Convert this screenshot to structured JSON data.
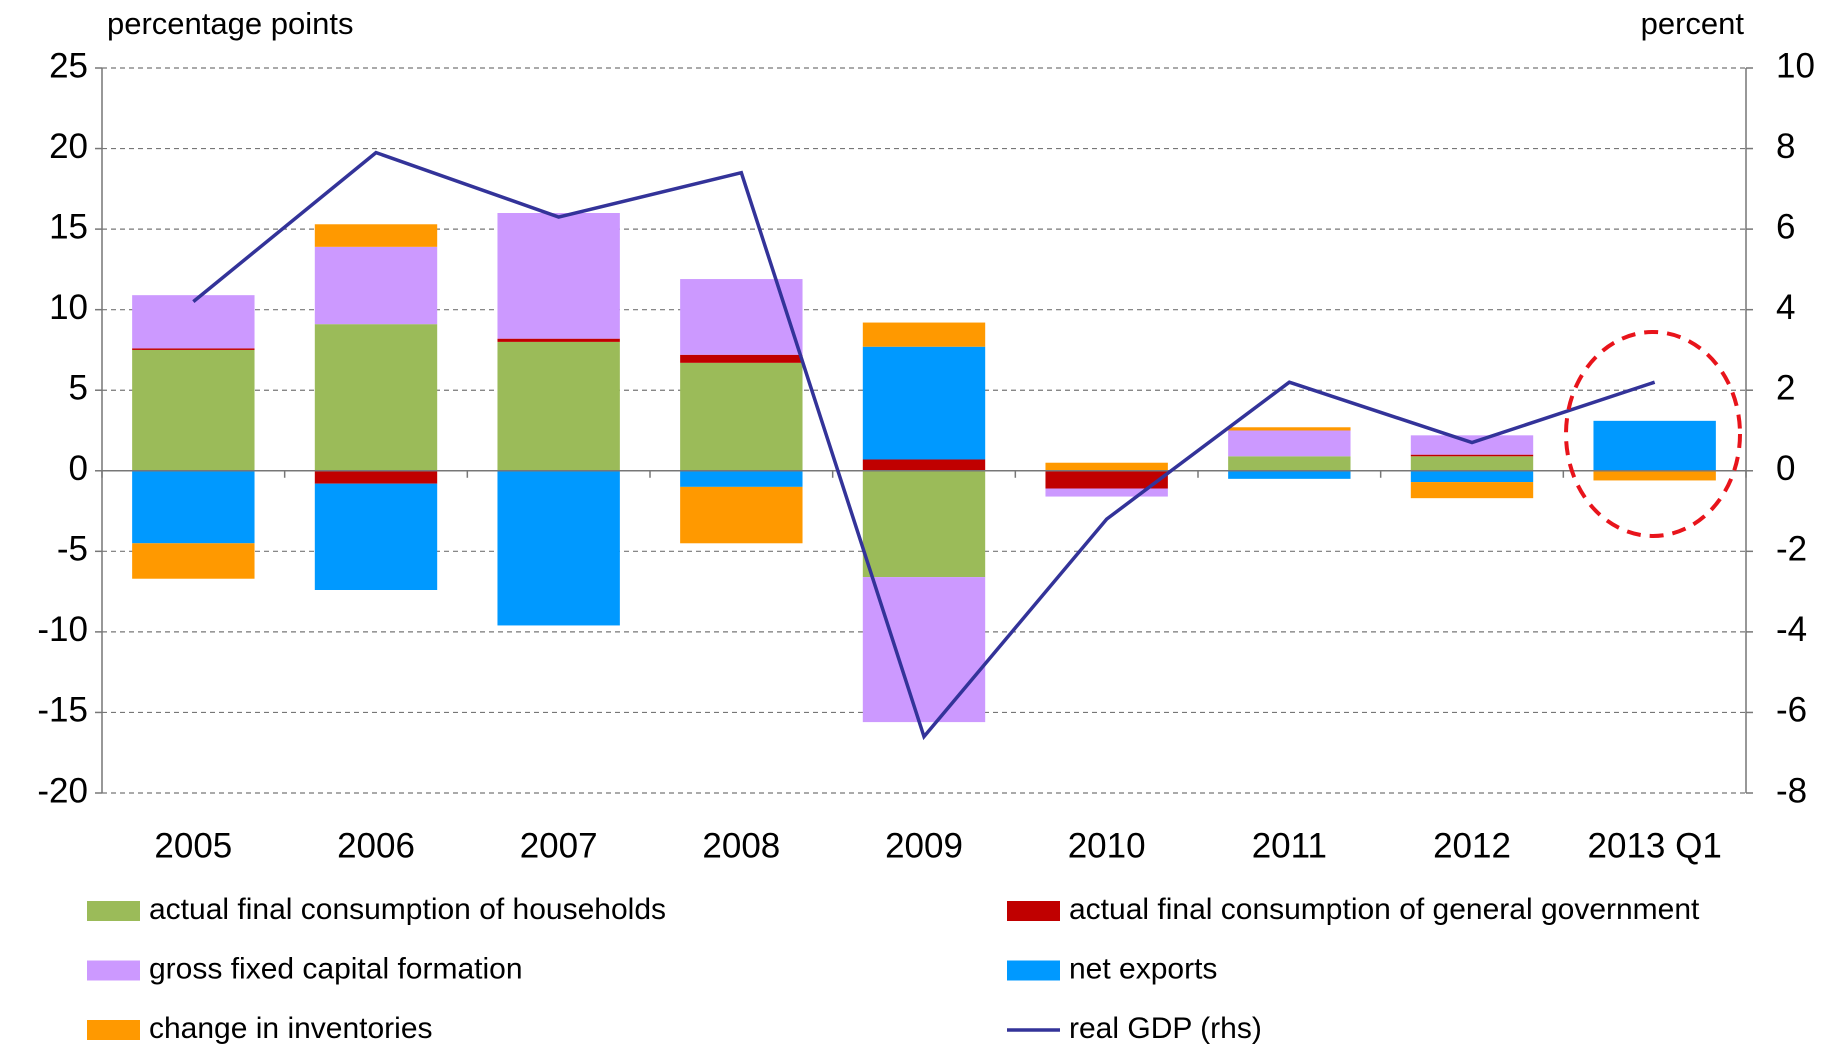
{
  "chart_data": {
    "type": "bar",
    "y_label": "percentage points",
    "y2_label": "percent",
    "categories": [
      "2005",
      "2006",
      "2007",
      "2008",
      "2009",
      "2010",
      "2011",
      "2012",
      "2013 Q1"
    ],
    "stacked": true,
    "grid": true,
    "ylim": [
      -20,
      25
    ],
    "yticks": [
      -20,
      -15,
      -10,
      -5,
      0,
      5,
      10,
      15,
      20,
      25
    ],
    "y2lim": [
      -8,
      10
    ],
    "y2ticks": [
      -8,
      -6,
      -4,
      -2,
      0,
      2,
      4,
      6,
      8,
      10
    ],
    "series": [
      {
        "name": "actual final consumption of households",
        "color": "#9bbb59",
        "values": [
          7.5,
          9.1,
          8.0,
          6.7,
          -6.6,
          0,
          0.9,
          0.9,
          0
        ]
      },
      {
        "name": "actual final consumption of general government",
        "color": "#c00000",
        "values": [
          0.1,
          -0.8,
          0.2,
          0.5,
          0.7,
          -1.1,
          0,
          0.1,
          0
        ]
      },
      {
        "name": "gross fixed capital formation",
        "color": "#cc99ff",
        "values": [
          3.3,
          4.8,
          7.8,
          4.7,
          -9.0,
          -0.5,
          1.6,
          1.2,
          0
        ]
      },
      {
        "name": "net exports",
        "color": "#0099ff",
        "values": [
          -4.5,
          -6.6,
          -9.6,
          -1.0,
          7.0,
          0,
          -0.5,
          -0.7,
          3.1
        ]
      },
      {
        "name": "change in inventories",
        "color": "#ff9900",
        "values": [
          -2.2,
          1.4,
          0,
          -3.5,
          1.5,
          0.5,
          0.2,
          -1.0,
          -0.6
        ]
      },
      {
        "name": "real GDP (rhs)",
        "type": "line",
        "axis": "y2",
        "color": "#333399",
        "values": [
          4.2,
          7.9,
          6.3,
          7.4,
          -6.6,
          -1.2,
          2.2,
          0.7,
          2.2
        ]
      }
    ]
  }
}
